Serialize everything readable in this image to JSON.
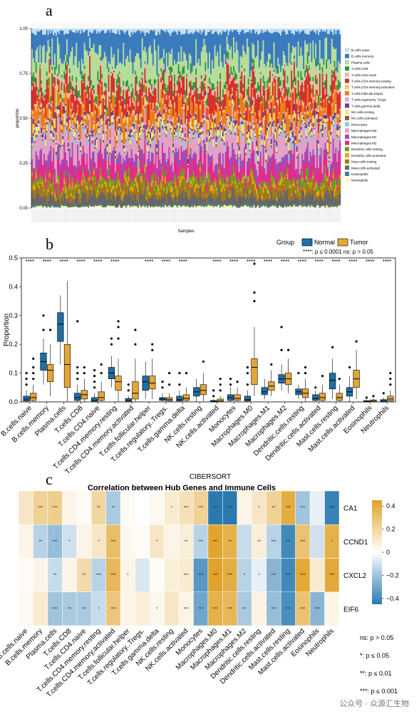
{
  "panels": {
    "a": "a",
    "b": "b",
    "c": "c"
  },
  "watermark": "公众号 · 众源汇生物",
  "cell_types": [
    "B.cells.naive",
    "B.cells.memory",
    "Plasma.cells",
    "T.cells.CD8",
    "T.cells.CD4.naive",
    "T.cells.CD4.memory.resting",
    "T.cells.CD4.memory.activated",
    "T.cells.follicular.helper",
    "T.cells.regulatory..Tregs.",
    "T.cells.gamma.delta",
    "NK.cells.resting",
    "NK.cells.activated",
    "Monocytes",
    "Macrophages.M0",
    "Macrophages.M1",
    "Macrophages.M2",
    "Dendritic.cells.resting",
    "Dendritic.cells.activated",
    "Mast.cells.resting",
    "Mast.cells.activated",
    "Eosinophils",
    "Neutrophils"
  ],
  "colors": {
    "stack": [
      "#c4e0f0",
      "#3a7bbf",
      "#b6dd9a",
      "#2e9a3c",
      "#f4b4b3",
      "#d7302c",
      "#fbbe77",
      "#ee7d16",
      "#cdb5d8",
      "#6a3d9a",
      "#f0e87d",
      "#a0522d",
      "#8ecae6",
      "#e4a1c6",
      "#9d4eb7",
      "#e7298a",
      "#66a61e",
      "#e6ab02",
      "#a6761d",
      "#666666",
      "#4d7b8f",
      "#fffbb0"
    ],
    "normal": "#1f6fa5",
    "tumor": "#e3a63a",
    "heat_low": "#2a7ab0",
    "heat_mid": "#ffffff",
    "heat_high": "#e0a32a"
  },
  "chart_data": [
    {
      "type": "stacked_bar",
      "panel": "a",
      "xlabel": "Samples",
      "ylabel": "proportion",
      "ylim": [
        0,
        1
      ],
      "yticks": [
        "0.00",
        "0.25",
        "0.50",
        "0.75",
        "1.00"
      ],
      "legend_position": "right",
      "legend": [
        "B.cells.naive",
        "B.cells.memory",
        "Plasma.cells",
        "T.cells.CD8",
        "T.cells.CD4.naive",
        "T.cells.CD4.memory.resting",
        "T.cells.CD4.memory.activated",
        "T.cells.follicular.helper",
        "T.cells.regulatory..Tregs.",
        "T.cells.gamma.delta",
        "NK.cells.resting",
        "NK.cells.activated",
        "Monocytes",
        "Macrophages.M0",
        "Macrophages.M1",
        "Macrophages.M2",
        "Dendritic.cells.resting",
        "Dendritic.cells.activated",
        "Mast.cells.resting",
        "Mast.cells.activated",
        "Eosinophils",
        "Neutrophils"
      ],
      "mean_proportions": [
        0.02,
        0.13,
        0.14,
        0.03,
        0.02,
        0.1,
        0.02,
        0.07,
        0.01,
        0.02,
        0.03,
        0.01,
        0.02,
        0.1,
        0.05,
        0.08,
        0.03,
        0.02,
        0.05,
        0.05,
        0.01,
        0.01
      ]
    },
    {
      "type": "box",
      "panel": "b",
      "ylabel": "Proportion",
      "ylim": [
        0,
        0.5
      ],
      "yticks": [
        "0.0",
        "0.1",
        "0.2",
        "0.3",
        "0.4",
        "0.5"
      ],
      "legend_title": "Group",
      "series_names": [
        "Normal",
        "Tumor"
      ],
      "note": "****: p ≤ 0.0001   ns: p > 0.05",
      "categories": [
        "B.cells.naive",
        "B.cells.memory",
        "Plasma.cells",
        "T.cells.CD8",
        "T.cells.CD4.naive",
        "T.cells.CD4.memory.resting",
        "T.cells.CD4.memory.activated",
        "T.cells.follicular.helper",
        "T.cells.regulatory..Tregs.",
        "T.cells.gamma.delta",
        "NK.cells.resting",
        "NK.cells.activated",
        "Monocytes",
        "Macrophages.M0",
        "Macrophages.M1",
        "Macrophages.M2",
        "Dendritic.cells.resting",
        "Dendritic.cells.activated",
        "Mast.cells.resting",
        "Mast.cells.activated",
        "Eosinophils",
        "Neutrophils"
      ],
      "significance": [
        "****",
        "****",
        "****",
        "****",
        "****",
        "****",
        "",
        "****",
        "****",
        "****",
        "",
        "****",
        "****",
        "****",
        "****",
        "****",
        "****",
        "****",
        "****",
        "****",
        "****",
        "****"
      ],
      "normal": [
        {
          "q1": 0.003,
          "med": 0.01,
          "q3": 0.02,
          "lo": 0,
          "hi": 0.04,
          "out": [
            0.06,
            0.08,
            0.1
          ]
        },
        {
          "q1": 0.11,
          "med": 0.14,
          "q3": 0.17,
          "lo": 0.06,
          "hi": 0.22,
          "out": [
            0.25,
            0.3
          ]
        },
        {
          "q1": 0.21,
          "med": 0.27,
          "q3": 0.31,
          "lo": 0.13,
          "hi": 0.37,
          "out": []
        },
        {
          "q1": 0.005,
          "med": 0.015,
          "q3": 0.03,
          "lo": 0,
          "hi": 0.06,
          "out": [
            0.08,
            0.1,
            0.12,
            0.28
          ]
        },
        {
          "q1": 0,
          "med": 0.005,
          "q3": 0.015,
          "lo": 0,
          "hi": 0.03,
          "out": [
            0.05,
            0.07,
            0.09,
            0.11
          ]
        },
        {
          "q1": 0.08,
          "med": 0.1,
          "q3": 0.12,
          "lo": 0.05,
          "hi": 0.16,
          "out": [
            0.2,
            0.22
          ]
        },
        {
          "q1": 0.0,
          "med": 0.005,
          "q3": 0.012,
          "lo": 0,
          "hi": 0.02,
          "out": [
            0.04,
            0.06
          ]
        },
        {
          "q1": 0.04,
          "med": 0.07,
          "q3": 0.09,
          "lo": 0.01,
          "hi": 0.14,
          "out": []
        },
        {
          "q1": 0.005,
          "med": 0.01,
          "q3": 0.015,
          "lo": 0,
          "hi": 0.03,
          "out": [
            0.05,
            0.07
          ]
        },
        {
          "q1": 0.003,
          "med": 0.008,
          "q3": 0.02,
          "lo": 0,
          "hi": 0.04,
          "out": [
            0.06,
            0.1
          ]
        },
        {
          "q1": 0.02,
          "med": 0.035,
          "q3": 0.05,
          "lo": 0,
          "hi": 0.08,
          "out": []
        },
        {
          "q1": 0,
          "med": 0.002,
          "q3": 0.005,
          "lo": 0,
          "hi": 0.01,
          "out": [
            0.02,
            0.04
          ]
        },
        {
          "q1": 0.005,
          "med": 0.015,
          "q3": 0.025,
          "lo": 0,
          "hi": 0.05,
          "out": [
            0.06,
            0.08
          ]
        },
        {
          "q1": 0.003,
          "med": 0.008,
          "q3": 0.02,
          "lo": 0,
          "hi": 0.04,
          "out": [
            0.06,
            0.1,
            0.12
          ]
        },
        {
          "q1": 0.025,
          "med": 0.035,
          "q3": 0.05,
          "lo": 0.01,
          "hi": 0.08,
          "out": []
        },
        {
          "q1": 0.065,
          "med": 0.08,
          "q3": 0.095,
          "lo": 0.04,
          "hi": 0.13,
          "out": [
            0.18,
            0.26
          ]
        },
        {
          "q1": 0.025,
          "med": 0.035,
          "q3": 0.045,
          "lo": 0.01,
          "hi": 0.06,
          "out": [
            0.1
          ]
        },
        {
          "q1": 0.005,
          "med": 0.012,
          "q3": 0.025,
          "lo": 0,
          "hi": 0.04,
          "out": [
            0.05
          ]
        },
        {
          "q1": 0.045,
          "med": 0.075,
          "q3": 0.1,
          "lo": 0.01,
          "hi": 0.15,
          "out": [
            0.19
          ]
        },
        {
          "q1": 0.02,
          "med": 0.035,
          "q3": 0.05,
          "lo": 0,
          "hi": 0.09,
          "out": [
            0.12
          ]
        },
        {
          "q1": 0,
          "med": 0.002,
          "q3": 0.004,
          "lo": 0,
          "hi": 0.008,
          "out": [
            0.015
          ]
        },
        {
          "q1": 0,
          "med": 0.003,
          "q3": 0.008,
          "lo": 0,
          "hi": 0.015,
          "out": [
            0.03
          ]
        }
      ],
      "tumor": [
        {
          "q1": 0.005,
          "med": 0.015,
          "q3": 0.03,
          "lo": 0,
          "hi": 0.06,
          "out": [
            0.08,
            0.1,
            0.12,
            0.15
          ]
        },
        {
          "q1": 0.07,
          "med": 0.11,
          "q3": 0.13,
          "lo": 0.02,
          "hi": 0.2,
          "out": [
            0.25
          ]
        },
        {
          "q1": 0.05,
          "med": 0.13,
          "q3": 0.2,
          "lo": 0,
          "hi": 0.42,
          "out": []
        },
        {
          "q1": 0.01,
          "med": 0.025,
          "q3": 0.04,
          "lo": 0,
          "hi": 0.08,
          "out": [
            0.1,
            0.12
          ]
        },
        {
          "q1": 0.005,
          "med": 0.015,
          "q3": 0.035,
          "lo": 0,
          "hi": 0.07,
          "out": [
            0.1,
            0.13
          ]
        },
        {
          "q1": 0.04,
          "med": 0.07,
          "q3": 0.09,
          "lo": 0,
          "hi": 0.15,
          "out": [
            0.22,
            0.26,
            0.28
          ]
        },
        {
          "q1": 0.01,
          "med": 0.03,
          "q3": 0.07,
          "lo": 0,
          "hi": 0.15,
          "out": [
            0.2,
            0.25
          ]
        },
        {
          "q1": 0.045,
          "med": 0.065,
          "q3": 0.09,
          "lo": 0.01,
          "hi": 0.15,
          "out": [
            0.18,
            0.2
          ]
        },
        {
          "q1": 0.003,
          "med": 0.008,
          "q3": 0.015,
          "lo": 0,
          "hi": 0.03,
          "out": [
            0.06,
            0.1
          ]
        },
        {
          "q1": 0.005,
          "med": 0.012,
          "q3": 0.025,
          "lo": 0,
          "hi": 0.05,
          "out": [
            0.1
          ]
        },
        {
          "q1": 0.025,
          "med": 0.04,
          "q3": 0.06,
          "lo": 0,
          "hi": 0.1,
          "out": [
            0.14
          ]
        },
        {
          "q1": 0,
          "med": 0.003,
          "q3": 0.01,
          "lo": 0,
          "hi": 0.02,
          "out": [
            0.04,
            0.06,
            0.08
          ]
        },
        {
          "q1": 0.005,
          "med": 0.012,
          "q3": 0.025,
          "lo": 0,
          "hi": 0.05,
          "out": [
            0.07
          ]
        },
        {
          "q1": 0.06,
          "med": 0.12,
          "q3": 0.15,
          "lo": 0.02,
          "hi": 0.26,
          "out": [
            0.35,
            0.38,
            0.48
          ]
        },
        {
          "q1": 0.04,
          "med": 0.055,
          "q3": 0.07,
          "lo": 0.02,
          "hi": 0.11,
          "out": [
            0.13
          ]
        },
        {
          "q1": 0.06,
          "med": 0.08,
          "q3": 0.1,
          "lo": 0.03,
          "hi": 0.15,
          "out": [
            0.18
          ]
        },
        {
          "q1": 0.015,
          "med": 0.03,
          "q3": 0.045,
          "lo": 0,
          "hi": 0.08,
          "out": [
            0.1,
            0.12
          ]
        },
        {
          "q1": 0.005,
          "med": 0.015,
          "q3": 0.03,
          "lo": 0,
          "hi": 0.06,
          "out": [
            0.09
          ]
        },
        {
          "q1": 0.005,
          "med": 0.015,
          "q3": 0.03,
          "lo": 0,
          "hi": 0.06,
          "out": [
            0.08
          ]
        },
        {
          "q1": 0.05,
          "med": 0.08,
          "q3": 0.11,
          "lo": 0.01,
          "hi": 0.18,
          "out": [
            0.21
          ]
        },
        {
          "q1": 0,
          "med": 0.003,
          "q3": 0.007,
          "lo": 0,
          "hi": 0.012,
          "out": [
            0.02
          ]
        },
        {
          "q1": 0.003,
          "med": 0.01,
          "q3": 0.02,
          "lo": 0,
          "hi": 0.04,
          "out": [
            0.06,
            0.08,
            0.1
          ]
        }
      ]
    },
    {
      "type": "heatmap",
      "panel": "c",
      "supertitle": "CIBERSORT",
      "title": "Correlation between Hub Genes and Immune Cells",
      "rows": [
        "CA1",
        "CCND1",
        "CXCL2",
        "EIF6"
      ],
      "columns": [
        "B.cells.naive",
        "B.cells.memory",
        "Plasma.cells",
        "T.cells.CD8",
        "T.cells.CD4.naive",
        "T.cells.CD4.memory.resting",
        "T.cells.CD4.memory.activated",
        "T.cells.follicular.helper",
        "T.cells.regulatory..Tregs.",
        "T.cells.gamma.delta",
        "NK.cells.resting",
        "NK.cells.activated",
        "Monocytes",
        "Macrophages.M0",
        "Macrophages.M1",
        "Macrophages.M2",
        "Dendritic.cells.resting",
        "Dendritic.cells.activated",
        "Mast.cells.resting",
        "Mast.cells.activated",
        "Eosinophils",
        "Neutrophils"
      ],
      "values": [
        [
          0.12,
          0.22,
          0.24,
          0.05,
          0.02,
          0.2,
          -0.18,
          0.02,
          0.0,
          0.03,
          0.1,
          0.15,
          0.22,
          -0.45,
          -0.48,
          0.05,
          0.12,
          0.22,
          0.4,
          -0.2,
          -0.05,
          -0.42
        ],
        [
          0.05,
          -0.15,
          -0.22,
          -0.1,
          0.05,
          0.12,
          0.32,
          0.03,
          0.02,
          0.12,
          0.05,
          0.08,
          -0.15,
          0.44,
          0.38,
          -0.12,
          0.08,
          -0.15,
          -0.4,
          0.3,
          -0.1,
          0.38
        ],
        [
          0.02,
          0.05,
          -0.12,
          0.05,
          0.18,
          -0.15,
          0.35,
          0.05,
          -0.08,
          0.02,
          0.08,
          0.1,
          -0.35,
          0.45,
          0.4,
          -0.15,
          -0.05,
          -0.25,
          -0.4,
          0.42,
          0.1,
          0.42
        ],
        [
          0.03,
          0.1,
          -0.2,
          -0.18,
          -0.18,
          -0.12,
          0.28,
          0.05,
          0.08,
          0.04,
          0.12,
          0.05,
          -0.3,
          0.38,
          0.35,
          -0.18,
          0.06,
          -0.22,
          -0.38,
          0.3,
          -0.25,
          0.05
        ]
      ],
      "stars": [
        [
          "",
          "***",
          "***",
          "",
          "",
          "**",
          "**",
          "",
          "",
          "",
          "*",
          "***",
          "***",
          "***",
          "***",
          "",
          "*",
          "**",
          "***",
          "***",
          "",
          "***"
        ],
        [
          "",
          "**",
          "***",
          "*",
          "",
          "*",
          "***",
          "",
          "",
          "*",
          "",
          "**",
          "***",
          "***",
          "**",
          "",
          "**",
          "***",
          "***",
          "***",
          "",
          "*"
        ],
        [
          "",
          "",
          "**",
          "",
          "**",
          "***",
          "***",
          "*",
          "",
          "",
          "",
          "***",
          "***",
          "***",
          "***",
          "*",
          "*",
          "***",
          "***",
          "***",
          "",
          "***"
        ],
        [
          "",
          "",
          "***",
          "**",
          "**",
          "*",
          "***",
          "",
          "",
          "*",
          "",
          "***",
          "***",
          "***",
          "***",
          "**",
          "",
          "***",
          "***",
          "***",
          "***",
          ""
        ]
      ],
      "color_scale": {
        "min": -0.45,
        "max": 0.45,
        "ticks": [
          "0.4",
          "0.2",
          "0",
          "−0.2",
          "−0.4"
        ]
      },
      "significance_legend": [
        "ns: p > 0.05",
        "*: p ≤ 0.05",
        "**: p ≤ 0.01",
        "***: p ≤ 0.001"
      ]
    }
  ]
}
